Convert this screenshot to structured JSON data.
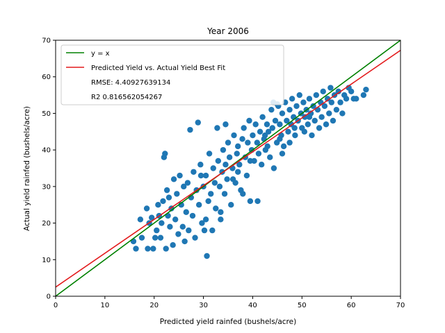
{
  "chart_data": {
    "type": "scatter",
    "title": "Year 2006",
    "xlabel": "Predicted yield rainfed (bushels/acre)",
    "ylabel": "Actual yield rainfed (bushels/acre)",
    "xlim": [
      0,
      70
    ],
    "ylim": [
      0,
      70
    ],
    "xticks": [
      "0",
      "10",
      "20",
      "30",
      "40",
      "50",
      "60",
      "70"
    ],
    "yticks": [
      "0",
      "10",
      "20",
      "30",
      "40",
      "50",
      "60",
      "70"
    ],
    "grid": false,
    "legend_position": "top-left",
    "legend": {
      "line1": "y = x",
      "line2": "Predicted Yield vs. Actual Yield Best Fit",
      "text1": "RMSE: 4.40927639134",
      "text2": "R2 0.816562054267"
    },
    "lines": [
      {
        "name": "y = x",
        "color": "#008000",
        "slope": 1.0,
        "intercept": 0.0
      },
      {
        "name": "Predicted Yield vs. Actual Yield Best Fit",
        "color": "#e31a1c",
        "slope": 0.925,
        "intercept": 2.5
      }
    ],
    "scatter_color": "#1f77b4",
    "points": [
      [
        15.8,
        15.0
      ],
      [
        16.3,
        13.0
      ],
      [
        17.2,
        21.0
      ],
      [
        17.5,
        16.0
      ],
      [
        18.5,
        24.0
      ],
      [
        18.7,
        13.0
      ],
      [
        19.0,
        20.0
      ],
      [
        19.5,
        21.5
      ],
      [
        19.8,
        13.0
      ],
      [
        20.2,
        16.0
      ],
      [
        20.5,
        18.0
      ],
      [
        20.8,
        25.0
      ],
      [
        21.0,
        22.0
      ],
      [
        21.3,
        16.0
      ],
      [
        21.5,
        20.0
      ],
      [
        21.8,
        26.0
      ],
      [
        22.0,
        38.0
      ],
      [
        22.2,
        39.0
      ],
      [
        22.4,
        13.0
      ],
      [
        22.6,
        29.0
      ],
      [
        22.8,
        22.0
      ],
      [
        23.0,
        27.0
      ],
      [
        23.2,
        19.0
      ],
      [
        23.5,
        24.0
      ],
      [
        23.8,
        14.0
      ],
      [
        24.0,
        32.0
      ],
      [
        24.3,
        21.0
      ],
      [
        24.6,
        28.0
      ],
      [
        24.9,
        17.0
      ],
      [
        25.2,
        33.0
      ],
      [
        25.5,
        25.0
      ],
      [
        25.8,
        19.0
      ],
      [
        26.0,
        30.0
      ],
      [
        26.2,
        15.0
      ],
      [
        26.5,
        23.0
      ],
      [
        26.8,
        31.0
      ],
      [
        27.0,
        18.0
      ],
      [
        27.3,
        45.5
      ],
      [
        27.5,
        27.0
      ],
      [
        27.8,
        22.0
      ],
      [
        28.0,
        34.0
      ],
      [
        28.3,
        16.0
      ],
      [
        28.6,
        29.0
      ],
      [
        28.9,
        47.5
      ],
      [
        29.1,
        25.0
      ],
      [
        29.4,
        36.0
      ],
      [
        29.7,
        20.0
      ],
      [
        30.0,
        30.0
      ],
      [
        30.2,
        18.0
      ],
      [
        30.5,
        33.0
      ],
      [
        30.7,
        11.0
      ],
      [
        31.0,
        26.0
      ],
      [
        31.2,
        39.0
      ],
      [
        31.5,
        28.0
      ],
      [
        31.8,
        18.0
      ],
      [
        32.0,
        35.0
      ],
      [
        32.3,
        31.0
      ],
      [
        32.5,
        24.0
      ],
      [
        32.8,
        46.0
      ],
      [
        33.0,
        37.0
      ],
      [
        33.3,
        30.0
      ],
      [
        33.5,
        21.0
      ],
      [
        33.8,
        34.0
      ],
      [
        34.0,
        40.0
      ],
      [
        34.3,
        28.0
      ],
      [
        34.5,
        36.0
      ],
      [
        34.8,
        32.0
      ],
      [
        35.0,
        42.0
      ],
      [
        35.3,
        38.0
      ],
      [
        35.6,
        25.0
      ],
      [
        35.9,
        35.0
      ],
      [
        36.2,
        44.0
      ],
      [
        36.5,
        31.0
      ],
      [
        36.8,
        39.0
      ],
      [
        37.0,
        41.0
      ],
      [
        37.3,
        36.0
      ],
      [
        37.6,
        29.0
      ],
      [
        37.9,
        43.0
      ],
      [
        38.2,
        46.0
      ],
      [
        38.5,
        38.0
      ],
      [
        38.8,
        33.0
      ],
      [
        39.0,
        42.0
      ],
      [
        39.3,
        48.0
      ],
      [
        39.5,
        26.0
      ],
      [
        39.8,
        40.0
      ],
      [
        40.0,
        44.0
      ],
      [
        40.3,
        37.0
      ],
      [
        40.6,
        47.0
      ],
      [
        40.9,
        42.0
      ],
      [
        41.2,
        39.0
      ],
      [
        41.5,
        45.0
      ],
      [
        41.8,
        36.0
      ],
      [
        42.0,
        49.0
      ],
      [
        42.3,
        43.0
      ],
      [
        42.6,
        40.0
      ],
      [
        42.9,
        47.0
      ],
      [
        43.2,
        45.0
      ],
      [
        43.5,
        38.0
      ],
      [
        43.8,
        51.0
      ],
      [
        44.0,
        46.0
      ],
      [
        44.3,
        35.0
      ],
      [
        44.6,
        48.0
      ],
      [
        44.9,
        42.0
      ],
      [
        45.2,
        52.0
      ],
      [
        45.5,
        47.0
      ],
      [
        45.8,
        44.0
      ],
      [
        46.0,
        50.0
      ],
      [
        46.3,
        41.0
      ],
      [
        46.6,
        53.0
      ],
      [
        46.9,
        48.0
      ],
      [
        47.2,
        45.0
      ],
      [
        47.5,
        51.0
      ],
      [
        47.8,
        47.0
      ],
      [
        48.0,
        54.0
      ],
      [
        48.3,
        49.0
      ],
      [
        48.6,
        44.0
      ],
      [
        48.9,
        52.0
      ],
      [
        49.2,
        48.0
      ],
      [
        49.5,
        55.0
      ],
      [
        49.8,
        50.0
      ],
      [
        50.0,
        46.0
      ],
      [
        50.3,
        53.0
      ],
      [
        50.6,
        49.0
      ],
      [
        50.9,
        51.0
      ],
      [
        51.2,
        47.0
      ],
      [
        51.5,
        54.0
      ],
      [
        51.8,
        50.0
      ],
      [
        52.0,
        44.0
      ],
      [
        52.3,
        52.0
      ],
      [
        52.6,
        48.0
      ],
      [
        52.9,
        55.0
      ],
      [
        53.2,
        51.0
      ],
      [
        53.5,
        46.0
      ],
      [
        53.8,
        53.0
      ],
      [
        54.0,
        49.0
      ],
      [
        54.3,
        56.0
      ],
      [
        54.6,
        52.0
      ],
      [
        54.9,
        47.0
      ],
      [
        55.2,
        54.0
      ],
      [
        55.5,
        50.0
      ],
      [
        55.8,
        57.0
      ],
      [
        56.0,
        53.0
      ],
      [
        56.3,
        48.0
      ],
      [
        56.6,
        55.0
      ],
      [
        57.0,
        51.0
      ],
      [
        57.4,
        56.0
      ],
      [
        57.8,
        53.0
      ],
      [
        58.2,
        50.0
      ],
      [
        58.6,
        55.0
      ],
      [
        59.0,
        54.0
      ],
      [
        59.5,
        57.0
      ],
      [
        60.0,
        56.0
      ],
      [
        60.5,
        54.0
      ],
      [
        61.0,
        54.0
      ],
      [
        62.5,
        55.0
      ],
      [
        63.0,
        56.5
      ],
      [
        44.2,
        53.0
      ],
      [
        45.0,
        52.5
      ],
      [
        36.0,
        32.0
      ],
      [
        34.5,
        47.0
      ],
      [
        29.5,
        33.0
      ],
      [
        30.5,
        21.0
      ],
      [
        33.5,
        23.0
      ],
      [
        41.0,
        26.0
      ],
      [
        38.0,
        28.0
      ],
      [
        37.0,
        34.0
      ],
      [
        39.5,
        37.0
      ],
      [
        43.0,
        41.0
      ],
      [
        45.5,
        43.0
      ],
      [
        48.5,
        46.0
      ],
      [
        50.5,
        45.0
      ],
      [
        47.5,
        42.0
      ],
      [
        42.5,
        44.0
      ],
      [
        46.0,
        39.0
      ],
      [
        51.5,
        49.0
      ]
    ]
  }
}
